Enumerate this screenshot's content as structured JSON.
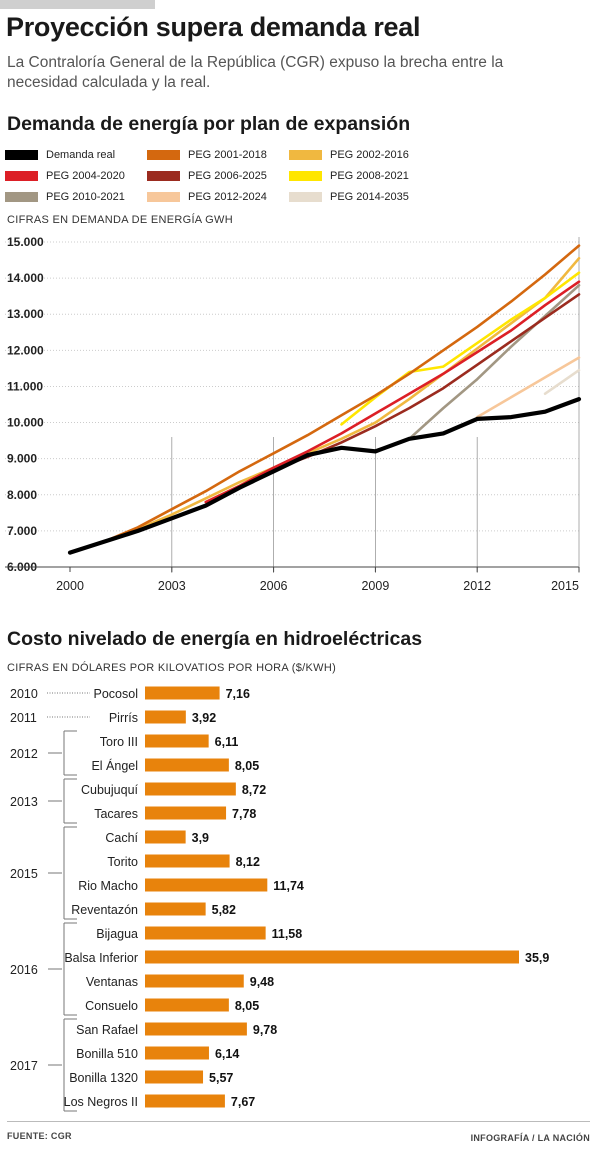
{
  "header": {
    "title": "Proyección supera demanda real",
    "subtitle": "La Contraloría General de la República (CGR) expuso la brecha entre la necesidad calculada y la real."
  },
  "section1": {
    "title": "Demanda de energía por plan de expansión",
    "axis_note": "CIFRAS EN DEMANDA DE ENERGÍA GWH"
  },
  "section2": {
    "title": "Costo nivelado de energía en hidroeléctricas",
    "axis_note": "CIFRAS EN DÓLARES POR KILOVATIOS POR HORA ($/KWH)"
  },
  "legend": [
    {
      "label": "Demanda real",
      "color": "#000000"
    },
    {
      "label": "PEG 2001-2018",
      "color": "#d4680f"
    },
    {
      "label": "PEG 2002-2016",
      "color": "#f0b840"
    },
    {
      "label": "PEG 2004-2020",
      "color": "#dc1f26"
    },
    {
      "label": "PEG 2006-2025",
      "color": "#9b2b1f"
    },
    {
      "label": "PEG 2008-2021",
      "color": "#ffe600"
    },
    {
      "label": "PEG 2010-2021",
      "color": "#a29783"
    },
    {
      "label": "PEG 2012-2024",
      "color": "#f7c79a"
    },
    {
      "label": "PEG 2014-2035",
      "color": "#e7ddce"
    }
  ],
  "chart_data": [
    {
      "type": "line",
      "title": "Demanda de energía por plan de expansión",
      "ylabel": "CIFRAS EN DEMANDA DE ENERGÍA GWH",
      "ylim": [
        6000,
        15000
      ],
      "xlim": [
        2000,
        2015
      ],
      "x_ticks": [
        "2000",
        "2003",
        "2006",
        "2009",
        "2012",
        "2015"
      ],
      "y_ticks": [
        "6.000",
        "7.000",
        "8.000",
        "9.000",
        "10.000",
        "11.000",
        "12.000",
        "13.000",
        "14.000",
        "15.000"
      ],
      "vertical_grid_years": [
        2003,
        2006,
        2009,
        2012
      ],
      "series": [
        {
          "name": "PEG 2014-2035",
          "color": "#e7ddce",
          "x": [
            2014,
            2015
          ],
          "y": [
            10800,
            11450
          ]
        },
        {
          "name": "PEG 2012-2024",
          "color": "#f7c79a",
          "x": [
            2012,
            2013,
            2014,
            2015
          ],
          "y": [
            10150,
            10700,
            11250,
            11800
          ]
        },
        {
          "name": "PEG 2010-2021",
          "color": "#a29783",
          "x": [
            2010,
            2011,
            2012,
            2013,
            2014,
            2015
          ],
          "y": [
            9550,
            10400,
            11200,
            12100,
            12950,
            13800
          ]
        },
        {
          "name": "PEG 2002-2016",
          "color": "#f0b840",
          "x": [
            2002,
            2003,
            2004,
            2005,
            2006,
            2007,
            2008,
            2009,
            2010,
            2011,
            2012,
            2013,
            2014,
            2015
          ],
          "y": [
            7050,
            7450,
            7900,
            8350,
            8750,
            9150,
            9550,
            10000,
            10650,
            11350,
            12050,
            12750,
            13450,
            14550
          ]
        },
        {
          "name": "PEG 2008-2021",
          "color": "#ffe600",
          "x": [
            2008,
            2009,
            2010,
            2011,
            2012,
            2013,
            2014,
            2015
          ],
          "y": [
            9950,
            10700,
            11400,
            11550,
            12200,
            12850,
            13450,
            14150
          ]
        },
        {
          "name": "PEG 2006-2025",
          "color": "#9b2b1f",
          "x": [
            2006,
            2007,
            2008,
            2009,
            2010,
            2011,
            2012,
            2013,
            2014,
            2015
          ],
          "y": [
            8700,
            9050,
            9450,
            9900,
            10400,
            10950,
            11600,
            12250,
            12900,
            13550
          ]
        },
        {
          "name": "PEG 2004-2020",
          "color": "#dc1f26",
          "x": [
            2004,
            2005,
            2006,
            2007,
            2008,
            2009,
            2010,
            2011,
            2012,
            2013,
            2014,
            2015
          ],
          "y": [
            7800,
            8250,
            8750,
            9200,
            9700,
            10250,
            10800,
            11350,
            11950,
            12550,
            13250,
            13900
          ]
        },
        {
          "name": "PEG 2001-2018",
          "color": "#d4680f",
          "x": [
            2001,
            2002,
            2003,
            2004,
            2005,
            2006,
            2007,
            2008,
            2009,
            2010,
            2011,
            2012,
            2013,
            2014,
            2015
          ],
          "y": [
            6700,
            7100,
            7600,
            8100,
            8650,
            9150,
            9650,
            10200,
            10750,
            11350,
            12000,
            12650,
            13350,
            14100,
            14900
          ]
        },
        {
          "name": "Demanda real",
          "color": "#000000",
          "x": [
            2000,
            2001,
            2002,
            2003,
            2004,
            2005,
            2006,
            2007,
            2008,
            2009,
            2010,
            2011,
            2012,
            2013,
            2014,
            2015
          ],
          "y": [
            6400,
            6700,
            7000,
            7350,
            7700,
            8200,
            8650,
            9100,
            9300,
            9200,
            9550,
            9700,
            10100,
            10150,
            10300,
            10650
          ]
        }
      ]
    },
    {
      "type": "bar",
      "title": "Costo nivelado de energía en hidroeléctricas",
      "ylabel": "CIFRAS EN DÓLARES POR KILOVATIOS POR HORA ($/KWH)",
      "color": "#e8830c",
      "xlim": [
        0,
        35.9
      ],
      "groups": [
        {
          "year": "2010",
          "first": 0,
          "last": 0
        },
        {
          "year": "2011",
          "first": 1,
          "last": 1
        },
        {
          "year": "2012",
          "first": 2,
          "last": 3
        },
        {
          "year": "2013",
          "first": 4,
          "last": 5
        },
        {
          "year": "2015",
          "first": 6,
          "last": 9
        },
        {
          "year": "2016",
          "first": 10,
          "last": 13
        },
        {
          "year": "2017",
          "first": 14,
          "last": 17
        }
      ],
      "categories": [
        "Pocosol",
        "Pirrís",
        "Toro III",
        "El Ángel",
        "Cubujuquí",
        "Tacares",
        "Cachí",
        "Torito",
        "Rio Macho",
        "Reventazón",
        "Bijagua",
        "Balsa Inferior",
        "Ventanas",
        "Consuelo",
        "San Rafael",
        "Bonilla 510",
        "Bonilla 1320",
        "Los Negros II"
      ],
      "values": [
        7.16,
        3.92,
        6.11,
        8.05,
        8.72,
        7.78,
        3.9,
        8.12,
        11.74,
        5.82,
        11.58,
        35.9,
        9.48,
        8.05,
        9.78,
        6.14,
        5.57,
        7.67
      ],
      "value_labels": [
        "7,16",
        "3,92",
        "6,11",
        "8,05",
        "8,72",
        "7,78",
        "3,9",
        "8,12",
        "11,74",
        "5,82",
        "11,58",
        "35,9",
        "9,48",
        "8,05",
        "9,78",
        "6,14",
        "5,57",
        "7,67"
      ]
    }
  ],
  "footer": {
    "source": "FUENTE: CGR",
    "credit": "INFOGRAFÍA / LA NACIÓN"
  }
}
